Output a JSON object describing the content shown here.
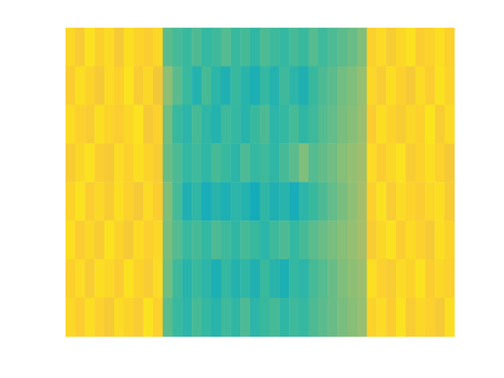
{
  "chart_data": {
    "type": "heatmap",
    "clim": [
      0,
      1
    ],
    "tick_labels": false,
    "cells": [
      [
        0.9,
        0.86,
        0.93,
        0.88,
        0.91,
        0.85,
        0.92,
        0.89,
        0.87,
        0.9,
        0.55,
        0.52,
        0.5,
        0.53,
        0.49,
        0.51,
        0.54,
        0.5,
        0.52,
        0.48,
        0.53,
        0.51,
        0.49,
        0.52,
        0.5,
        0.54,
        0.51,
        0.53,
        0.55,
        0.57,
        0.6,
        0.88,
        0.91,
        0.86,
        0.9,
        0.93,
        0.87,
        0.89,
        0.92,
        0.88
      ],
      [
        0.87,
        0.92,
        0.89,
        0.85,
        0.91,
        0.88,
        0.93,
        0.86,
        0.9,
        0.84,
        0.62,
        0.55,
        0.5,
        0.45,
        0.52,
        0.47,
        0.44,
        0.5,
        0.46,
        0.43,
        0.49,
        0.45,
        0.51,
        0.47,
        0.44,
        0.5,
        0.53,
        0.55,
        0.58,
        0.6,
        0.63,
        0.9,
        0.86,
        0.92,
        0.88,
        0.85,
        0.91,
        0.87,
        0.93,
        0.89
      ],
      [
        0.91,
        0.88,
        0.86,
        0.92,
        0.89,
        0.87,
        0.9,
        0.93,
        0.85,
        0.88,
        0.58,
        0.5,
        0.47,
        0.52,
        0.48,
        0.45,
        0.51,
        0.49,
        0.46,
        0.5,
        0.53,
        0.47,
        0.49,
        0.52,
        0.48,
        0.51,
        0.54,
        0.56,
        0.59,
        0.61,
        0.64,
        0.87,
        0.92,
        0.89,
        0.86,
        0.9,
        0.88,
        0.94,
        0.86,
        0.91
      ],
      [
        0.86,
        0.9,
        0.93,
        0.87,
        0.85,
        0.91,
        0.88,
        0.92,
        0.89,
        0.86,
        0.57,
        0.53,
        0.49,
        0.51,
        0.48,
        0.52,
        0.5,
        0.47,
        0.53,
        0.49,
        0.51,
        0.48,
        0.52,
        0.55,
        0.6,
        0.54,
        0.56,
        0.58,
        0.61,
        0.63,
        0.65,
        0.91,
        0.87,
        0.9,
        0.93,
        0.86,
        0.89,
        0.92,
        0.88,
        0.85
      ],
      [
        0.89,
        0.93,
        0.87,
        0.9,
        0.86,
        0.92,
        0.88,
        0.85,
        0.91,
        0.87,
        0.6,
        0.52,
        0.44,
        0.48,
        0.42,
        0.46,
        0.43,
        0.47,
        0.45,
        0.41,
        0.48,
        0.44,
        0.46,
        0.42,
        0.47,
        0.5,
        0.53,
        0.56,
        0.59,
        0.62,
        0.66,
        0.88,
        0.93,
        0.86,
        0.91,
        0.89,
        0.87,
        0.9,
        0.92,
        0.86
      ],
      [
        0.92,
        0.87,
        0.9,
        0.86,
        0.93,
        0.89,
        0.85,
        0.91,
        0.88,
        0.9,
        0.59,
        0.54,
        0.5,
        0.52,
        0.49,
        0.53,
        0.51,
        0.48,
        0.52,
        0.5,
        0.47,
        0.51,
        0.53,
        0.49,
        0.52,
        0.55,
        0.57,
        0.59,
        0.61,
        0.63,
        0.66,
        0.86,
        0.9,
        0.93,
        0.87,
        0.91,
        0.88,
        0.85,
        0.92,
        0.89
      ],
      [
        0.88,
        0.91,
        0.86,
        0.92,
        0.9,
        0.87,
        0.93,
        0.89,
        0.86,
        0.91,
        0.58,
        0.51,
        0.46,
        0.5,
        0.47,
        0.43,
        0.49,
        0.45,
        0.48,
        0.44,
        0.5,
        0.46,
        0.43,
        0.49,
        0.47,
        0.52,
        0.54,
        0.57,
        0.6,
        0.62,
        0.64,
        0.92,
        0.88,
        0.86,
        0.91,
        0.89,
        0.93,
        0.87,
        0.9,
        0.88
      ],
      [
        0.9,
        0.87,
        0.92,
        0.88,
        0.85,
        0.91,
        0.89,
        0.86,
        0.93,
        0.88,
        0.55,
        0.5,
        0.47,
        0.52,
        0.49,
        0.46,
        0.51,
        0.48,
        0.53,
        0.47,
        0.5,
        0.52,
        0.48,
        0.51,
        0.49,
        0.53,
        0.55,
        0.57,
        0.59,
        0.61,
        0.63,
        0.89,
        0.91,
        0.87,
        0.93,
        0.86,
        0.9,
        0.88,
        0.85,
        0.92
      ]
    ]
  }
}
